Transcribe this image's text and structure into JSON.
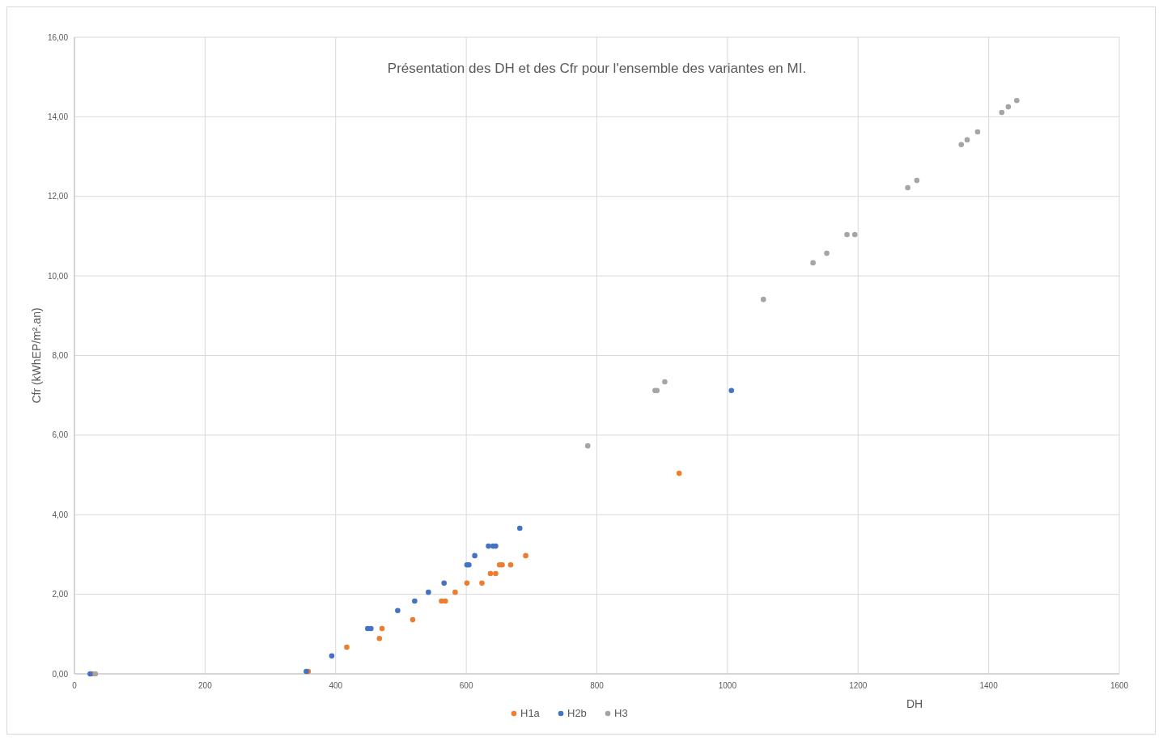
{
  "chart_data": {
    "type": "scatter",
    "title": "Présentation des DH et des Cfr pour l'ensemble des variantes en MI.",
    "xlabel": "DH",
    "ylabel": "Cfr (kWhEP/m².an)",
    "xlim": [
      0,
      1600
    ],
    "xticks": [
      0,
      200,
      400,
      600,
      800,
      1000,
      1200,
      1400,
      1600
    ],
    "ylim": [
      0,
      16
    ],
    "yticks": [
      {
        "value": 0,
        "label": "0,00"
      },
      {
        "value": 2,
        "label": "2,00"
      },
      {
        "value": 4,
        "label": "4,00"
      },
      {
        "value": 6,
        "label": "6,00"
      },
      {
        "value": 8,
        "label": "8,00"
      },
      {
        "value": 10,
        "label": "10,00"
      },
      {
        "value": 12,
        "label": "12,00"
      },
      {
        "value": 14,
        "label": "14,00"
      },
      {
        "value": 16,
        "label": "16,00"
      }
    ],
    "grid": true,
    "legend": "bottom",
    "marker": "circle",
    "series": [
      {
        "name": "H1a",
        "color": "#ed7d31",
        "x": [
          27,
          358,
          417,
          467,
          471,
          518,
          562,
          568,
          583,
          601,
          624,
          637,
          645,
          651,
          655,
          668,
          691,
          926
        ],
        "values": [
          0,
          0.06,
          0.67,
          0.89,
          1.14,
          1.36,
          1.83,
          1.83,
          2.05,
          2.28,
          2.28,
          2.52,
          2.52,
          2.74,
          2.74,
          2.74,
          2.97,
          5.04
        ]
      },
      {
        "name": "H2b",
        "color": "#4472c4",
        "x": [
          24,
          355,
          394,
          449,
          454,
          495,
          521,
          542,
          566,
          601,
          604,
          613,
          634,
          641,
          645,
          682,
          1006
        ],
        "values": [
          0,
          0.06,
          0.45,
          1.14,
          1.14,
          1.59,
          1.83,
          2.05,
          2.28,
          2.74,
          2.74,
          2.97,
          3.21,
          3.21,
          3.21,
          3.66,
          7.12
        ]
      },
      {
        "name": "H3",
        "color": "#a5a5a5",
        "x": [
          32,
          786,
          889,
          892,
          904,
          1055,
          1131,
          1152,
          1183,
          1195,
          1276,
          1290,
          1358,
          1367,
          1383,
          1420,
          1430,
          1443
        ],
        "values": [
          0,
          5.73,
          7.12,
          7.12,
          7.34,
          9.41,
          10.33,
          10.57,
          11.04,
          11.04,
          12.22,
          12.4,
          13.3,
          13.42,
          13.62,
          14.11,
          14.25,
          14.41
        ]
      }
    ]
  }
}
